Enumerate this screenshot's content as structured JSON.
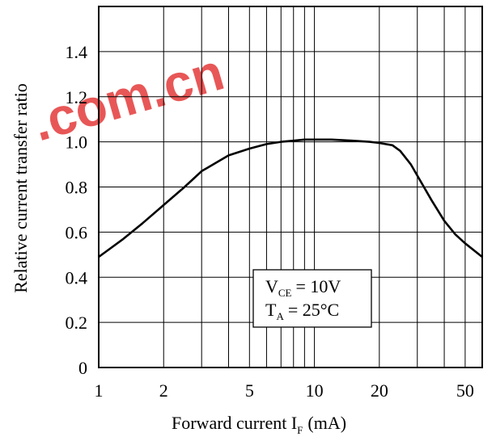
{
  "watermark": ".com.cn",
  "chart_data": {
    "type": "line",
    "xscale": "log",
    "xlim": [
      1,
      60
    ],
    "ylim": [
      0,
      1.6
    ],
    "grid": true,
    "xticks": [
      1,
      2,
      5,
      10,
      20,
      50
    ],
    "xgrid": [
      1,
      2,
      3,
      4,
      5,
      6,
      7,
      8,
      9,
      10,
      20,
      30,
      40,
      50,
      60
    ],
    "yticks": [
      0,
      0.2,
      0.4,
      0.6,
      0.8,
      1.0,
      1.2,
      1.4
    ],
    "ytick_labels": [
      "0",
      "0.2",
      "0.4",
      "0.6",
      "0.8",
      "1.0",
      "1.2",
      "1.4"
    ],
    "xlabel": {
      "main": "Forward current I",
      "sub": "F",
      "unit": "(mA)"
    },
    "ylabel": "Relative current transfer ratio",
    "annotation": {
      "line1": {
        "sym": "V",
        "sub": "CE",
        "rest": "= 10V"
      },
      "line2": {
        "sym": "T",
        "sub": "A",
        "rest": "= 25°C"
      }
    },
    "series": [
      {
        "x": [
          1,
          1.3,
          1.6,
          2,
          2.5,
          3,
          4,
          5,
          6,
          7,
          8,
          9,
          10,
          12,
          15,
          18,
          20,
          23,
          25,
          28,
          30,
          35,
          40,
          45,
          50,
          60
        ],
        "y": [
          0.49,
          0.57,
          0.64,
          0.72,
          0.8,
          0.87,
          0.94,
          0.97,
          0.99,
          1.0,
          1.005,
          1.01,
          1.01,
          1.01,
          1.005,
          1.0,
          0.995,
          0.985,
          0.96,
          0.9,
          0.85,
          0.74,
          0.65,
          0.59,
          0.55,
          0.49
        ]
      }
    ]
  }
}
